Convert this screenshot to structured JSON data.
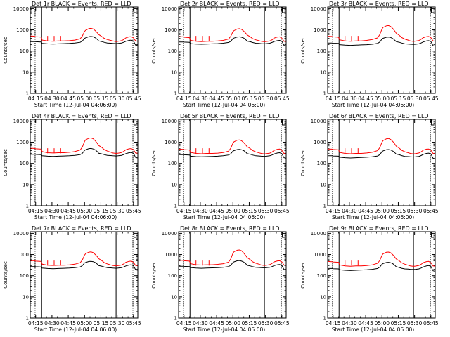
{
  "chart_data": {
    "type": "line",
    "layout": "3x3 grid of panels",
    "shared": {
      "title_template": "{det} BLACK = Events, RED = LLD",
      "ylabel": "Counts/sec",
      "xlabel": "Start Time (12-Jul-04 04:06:00)",
      "yscale": "log",
      "ylim": [
        1,
        12000
      ],
      "yticks": [
        1,
        10,
        100,
        1000,
        10000
      ],
      "ytick_labels": [
        "1",
        "10",
        "100",
        "1000",
        "10000"
      ],
      "xlim_minutes": [
        4,
        103
      ],
      "xticks_minutes": [
        9,
        24,
        39,
        54,
        69,
        84,
        99
      ],
      "xtick_labels": [
        "04:15",
        "04:30",
        "04:45",
        "05:00",
        "05:15",
        "05:30",
        "05:45"
      ],
      "dashed_markers_minutes": [
        8.5,
        98.5
      ],
      "solid_markers_minutes": [
        14.5,
        83
      ],
      "series_colors": {
        "events": "#000000",
        "lld": "#ff0000"
      }
    },
    "x_minutes": [
      4,
      8,
      9,
      14,
      15,
      20,
      25,
      30,
      35,
      40,
      45,
      50,
      52,
      54,
      55,
      58,
      60,
      62,
      64,
      66,
      67,
      70,
      72,
      75,
      78,
      80,
      83,
      85,
      88,
      90,
      92,
      95,
      97,
      99,
      101,
      103
    ],
    "panels": [
      {
        "title": "Det 1r BLACK = Events, RED = LLD",
        "series": [
          {
            "name": "Events",
            "values": [
              280,
              280,
              275,
              270,
              230,
              220,
              215,
              220,
              225,
              230,
              240,
              260,
              300,
              400,
              420,
              480,
              490,
              470,
              420,
              350,
              300,
              280,
              260,
              240,
              235,
              230,
              225,
              230,
              240,
              260,
              290,
              320,
              330,
              300,
              190,
              180
            ]
          },
          {
            "name": "LLD",
            "values": [
              520,
              500,
              480,
              460,
              330,
              300,
              290,
              300,
              300,
              310,
              330,
              380,
              520,
              850,
              950,
              1150,
              1180,
              1100,
              900,
              700,
              600,
              480,
              400,
              350,
              320,
              300,
              280,
              290,
              310,
              350,
              420,
              470,
              480,
              420,
              300,
              290
            ]
          }
        ]
      },
      {
        "title": "Det 2r BLACK = Events, RED = LLD",
        "series": [
          {
            "name": "Events",
            "values": [
              270,
              270,
              265,
              260,
              225,
              215,
              210,
              215,
              220,
              225,
              235,
              255,
              290,
              390,
              410,
              460,
              470,
              450,
              410,
              340,
              295,
              275,
              255,
              235,
              230,
              225,
              220,
              225,
              235,
              255,
              285,
              310,
              320,
              295,
              185,
              175
            ]
          },
          {
            "name": "LLD",
            "values": [
              480,
              470,
              450,
              430,
              320,
              290,
              280,
              290,
              290,
              300,
              320,
              370,
              500,
              820,
              920,
              1100,
              1130,
              1050,
              870,
              680,
              580,
              470,
              390,
              340,
              310,
              290,
              275,
              285,
              300,
              340,
              410,
              460,
              470,
              410,
              290,
              280
            ]
          }
        ]
      },
      {
        "title": "Det 3r BLACK = Events, RED = LLD",
        "series": [
          {
            "name": "Events",
            "values": [
              240,
              240,
              235,
              230,
              200,
              190,
              185,
              190,
              195,
              200,
              210,
              230,
              270,
              370,
              400,
              450,
              460,
              440,
              390,
              320,
              280,
              260,
              240,
              220,
              215,
              210,
              205,
              210,
              220,
              240,
              270,
              300,
              310,
              285,
              180,
              170
            ]
          },
          {
            "name": "LLD",
            "values": [
              500,
              490,
              470,
              450,
              340,
              300,
              290,
              300,
              300,
              320,
              350,
              420,
              600,
              1100,
              1300,
              1550,
              1600,
              1450,
              1150,
              850,
              700,
              550,
              440,
              370,
              330,
              300,
              285,
              295,
              315,
              360,
              430,
              480,
              490,
              430,
              300,
              290
            ]
          }
        ]
      },
      {
        "title": "Det 4r BLACK = Events, RED = LLD",
        "series": [
          {
            "name": "Events",
            "values": [
              270,
              270,
              265,
              260,
              230,
              220,
              215,
              220,
              225,
              230,
              240,
              260,
              300,
              410,
              440,
              500,
              510,
              480,
              430,
              350,
              300,
              280,
              260,
              240,
              235,
              230,
              225,
              230,
              240,
              260,
              290,
              320,
              330,
              300,
              190,
              180
            ]
          },
          {
            "name": "LLD",
            "values": [
              520,
              510,
              490,
              470,
              360,
              320,
              310,
              320,
              320,
              335,
              360,
              430,
              600,
              1100,
              1300,
              1550,
              1600,
              1450,
              1150,
              850,
              700,
              560,
              450,
              380,
              340,
              310,
              295,
              305,
              325,
              370,
              440,
              490,
              500,
              440,
              310,
              300
            ]
          }
        ]
      },
      {
        "title": "Det 5r BLACK = Events, RED = LLD",
        "series": [
          {
            "name": "Events",
            "values": [
              260,
              260,
              255,
              250,
              220,
              210,
              205,
              210,
              215,
              220,
              230,
              250,
              285,
              380,
              400,
              450,
              460,
              440,
              400,
              335,
              290,
              270,
              250,
              230,
              225,
              220,
              215,
              220,
              230,
              250,
              280,
              310,
              320,
              290,
              185,
              175
            ]
          },
          {
            "name": "LLD",
            "values": [
              470,
              460,
              445,
              430,
              330,
              295,
              285,
              295,
              295,
              305,
              325,
              380,
              520,
              900,
              1050,
              1250,
              1280,
              1180,
              950,
              730,
              620,
              500,
              410,
              350,
              315,
              295,
              280,
              290,
              305,
              345,
              415,
              465,
              475,
              415,
              295,
              285
            ]
          }
        ]
      },
      {
        "title": "Det 6r BLACK = Events, RED = LLD",
        "series": [
          {
            "name": "Events",
            "values": [
              230,
              230,
              225,
              220,
              195,
              185,
              180,
              185,
              190,
              195,
              205,
              225,
              260,
              360,
              390,
              440,
              450,
              430,
              380,
              315,
              275,
              255,
              235,
              215,
              210,
              205,
              200,
              205,
              215,
              235,
              265,
              295,
              305,
              280,
              175,
              165
            ]
          },
          {
            "name": "LLD",
            "values": [
              480,
              470,
              455,
              440,
              330,
              295,
              285,
              295,
              295,
              310,
              335,
              400,
              560,
              1000,
              1200,
              1450,
              1500,
              1350,
              1080,
              800,
              660,
              520,
              420,
              355,
              320,
              295,
              280,
              290,
              310,
              350,
              420,
              470,
              480,
              420,
              295,
              285
            ]
          }
        ]
      },
      {
        "title": "Det 7r BLACK = Events, RED = LLD",
        "series": [
          {
            "name": "Events",
            "values": [
              270,
              270,
              265,
              260,
              230,
              220,
              215,
              220,
              225,
              230,
              240,
              260,
              300,
              400,
              420,
              470,
              480,
              460,
              415,
              345,
              300,
              280,
              260,
              240,
              235,
              230,
              225,
              230,
              240,
              260,
              290,
              320,
              330,
              300,
              190,
              180
            ]
          },
          {
            "name": "LLD",
            "values": [
              520,
              510,
              490,
              470,
              350,
              315,
              305,
              315,
              315,
              325,
              350,
              410,
              560,
              950,
              1100,
              1300,
              1330,
              1230,
              990,
              760,
              640,
              510,
              420,
              360,
              325,
              305,
              290,
              300,
              320,
              360,
              430,
              480,
              490,
              430,
              305,
              295
            ]
          }
        ]
      },
      {
        "title": "Det 8r BLACK = Events, RED = LLD",
        "series": [
          {
            "name": "Events",
            "values": [
              280,
              280,
              275,
              270,
              240,
              230,
              225,
              230,
              235,
              240,
              250,
              270,
              310,
              420,
              450,
              510,
              520,
              490,
              440,
              360,
              310,
              290,
              270,
              250,
              245,
              240,
              235,
              240,
              250,
              270,
              300,
              330,
              340,
              310,
              195,
              185
            ]
          },
          {
            "name": "LLD",
            "values": [
              540,
              530,
              510,
              490,
              370,
              330,
              320,
              330,
              330,
              345,
              370,
              440,
              620,
              1150,
              1350,
              1600,
              1650,
              1500,
              1180,
              870,
              720,
              570,
              460,
              390,
              350,
              320,
              305,
              315,
              335,
              380,
              450,
              500,
              510,
              450,
              320,
              310
            ]
          }
        ]
      },
      {
        "title": "Det 9r BLACK = Events, RED = LLD",
        "series": [
          {
            "name": "Events",
            "values": [
              220,
              220,
              215,
              210,
              190,
              180,
              175,
              180,
              185,
              190,
              200,
              220,
              255,
              350,
              375,
              420,
              430,
              410,
              370,
              305,
              265,
              245,
              225,
              210,
              205,
              200,
              195,
              200,
              210,
              230,
              260,
              290,
              300,
              275,
              170,
              160
            ]
          },
          {
            "name": "LLD",
            "values": [
              470,
              460,
              445,
              430,
              325,
              290,
              280,
              290,
              290,
              300,
              325,
              385,
              530,
              920,
              1080,
              1280,
              1310,
              1210,
              970,
              740,
              620,
              500,
              410,
              350,
              315,
              290,
              275,
              285,
              305,
              345,
              415,
              465,
              475,
              415,
              290,
              280
            ]
          }
        ]
      }
    ]
  }
}
